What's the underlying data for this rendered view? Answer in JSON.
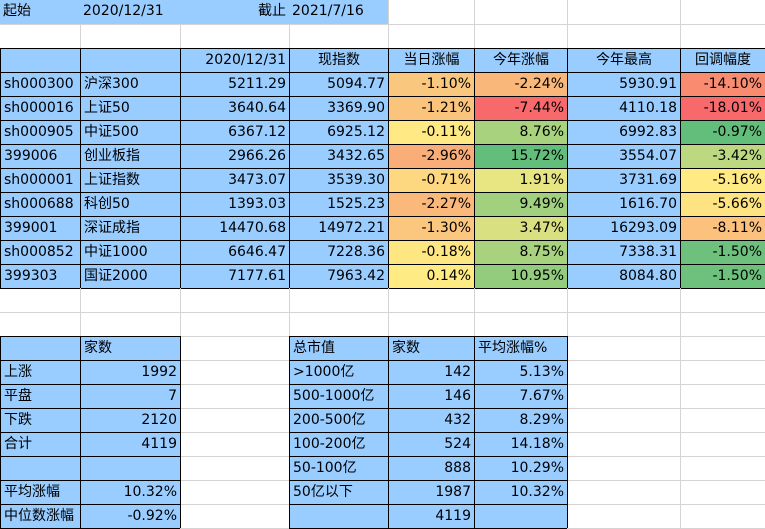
{
  "header": {
    "start_label": "起始",
    "start_date": "2020/12/31",
    "end_label": "截止",
    "end_date": "2021/7/16"
  },
  "index_table": {
    "columns": [
      "",
      "",
      "2020/12/31",
      "现指数",
      "当日涨幅",
      "今年涨幅",
      "今年最高",
      "回调幅度"
    ],
    "rows": [
      {
        "code": "sh000300",
        "name": "沪深300",
        "base": "5211.29",
        "current": "5094.77",
        "daily": "-1.10%",
        "ytd": "-2.24%",
        "high": "5930.91",
        "drawdown": "-14.10%",
        "daily_color": "#fac77e",
        "ytd_color": "#f9b779",
        "drawdown_color": "#f98b71"
      },
      {
        "code": "sh000016",
        "name": "上证50",
        "base": "3640.64",
        "current": "3369.90",
        "daily": "-1.21%",
        "ytd": "-7.44%",
        "high": "4110.18",
        "drawdown": "-18.01%",
        "daily_color": "#fac47d",
        "ytd_color": "#f8696b",
        "drawdown_color": "#f8696b"
      },
      {
        "code": "sh000905",
        "name": "中证500",
        "base": "6367.12",
        "current": "6925.12",
        "daily": "-0.11%",
        "ytd": "8.76%",
        "high": "6992.83",
        "drawdown": "-0.97%",
        "daily_color": "#ffe984",
        "ytd_color": "#a9d27f",
        "drawdown_color": "#63be7b"
      },
      {
        "code": "399006",
        "name": "创业板指",
        "base": "2966.26",
        "current": "3432.65",
        "daily": "-2.96%",
        "ytd": "15.72%",
        "high": "3554.07",
        "drawdown": "-3.42%",
        "daily_color": "#f9ad78",
        "ytd_color": "#63be7b",
        "drawdown_color": "#bcd981"
      },
      {
        "code": "sh000001",
        "name": "上证指数",
        "base": "3473.07",
        "current": "3539.30",
        "daily": "-0.71%",
        "ytd": "1.91%",
        "high": "3731.69",
        "drawdown": "-5.16%",
        "daily_color": "#fdd881",
        "ytd_color": "#e8e583",
        "drawdown_color": "#ffea84"
      },
      {
        "code": "sh000688",
        "name": "科创50",
        "base": "1393.03",
        "current": "1525.23",
        "daily": "-2.27%",
        "ytd": "9.49%",
        "high": "1616.70",
        "drawdown": "-5.66%",
        "daily_color": "#fab97a",
        "ytd_color": "#a1d07f",
        "drawdown_color": "#fee382"
      },
      {
        "code": "399001",
        "name": "深证成指",
        "base": "14470.68",
        "current": "14972.21",
        "daily": "-1.30%",
        "ytd": "3.47%",
        "high": "16293.09",
        "drawdown": "-8.11%",
        "daily_color": "#fbc67e",
        "ytd_color": "#d9e082",
        "drawdown_color": "#fcc27d"
      },
      {
        "code": "sh000852",
        "name": "中证1000",
        "base": "6646.47",
        "current": "7228.36",
        "daily": "-0.18%",
        "ytd": "8.75%",
        "high": "7338.31",
        "drawdown": "-1.50%",
        "daily_color": "#fee683",
        "ytd_color": "#a9d27f",
        "drawdown_color": "#6dc17c"
      },
      {
        "code": "399303",
        "name": "国证2000",
        "base": "7177.61",
        "current": "7963.42",
        "daily": "0.14%",
        "ytd": "10.95%",
        "high": "8084.80",
        "drawdown": "-1.50%",
        "daily_color": "#ffeb84",
        "ytd_color": "#94cc7e",
        "drawdown_color": "#6dc17c"
      }
    ]
  },
  "breadth_table": {
    "header": "家数",
    "rows": [
      {
        "label": "上涨",
        "value": "1992"
      },
      {
        "label": "平盘",
        "value": "7"
      },
      {
        "label": "下跌",
        "value": "2120"
      },
      {
        "label": "合计",
        "value": "4119"
      },
      {
        "label": "",
        "value": ""
      },
      {
        "label": "平均涨幅",
        "value": "10.32%"
      },
      {
        "label": "中位数涨幅",
        "value": "-0.92%"
      }
    ]
  },
  "cap_table": {
    "columns": [
      "总市值",
      "家数",
      "平均涨幅%"
    ],
    "rows": [
      {
        "range": ">1000亿",
        "count": "142",
        "avg": "5.13%"
      },
      {
        "range": "500-1000亿",
        "count": "146",
        "avg": "7.67%"
      },
      {
        "range": "200-500亿",
        "count": "432",
        "avg": "8.29%"
      },
      {
        "range": "100-200亿",
        "count": "524",
        "avg": "14.18%"
      },
      {
        "range": "50-100亿",
        "count": "888",
        "avg": "10.29%"
      },
      {
        "range": "50亿以下",
        "count": "1987",
        "avg": "10.32%"
      },
      {
        "range": "",
        "count": "4119",
        "avg": ""
      }
    ]
  },
  "colors": {
    "cell_blue": "#99ccff",
    "gridline": "#d4d4d4"
  }
}
